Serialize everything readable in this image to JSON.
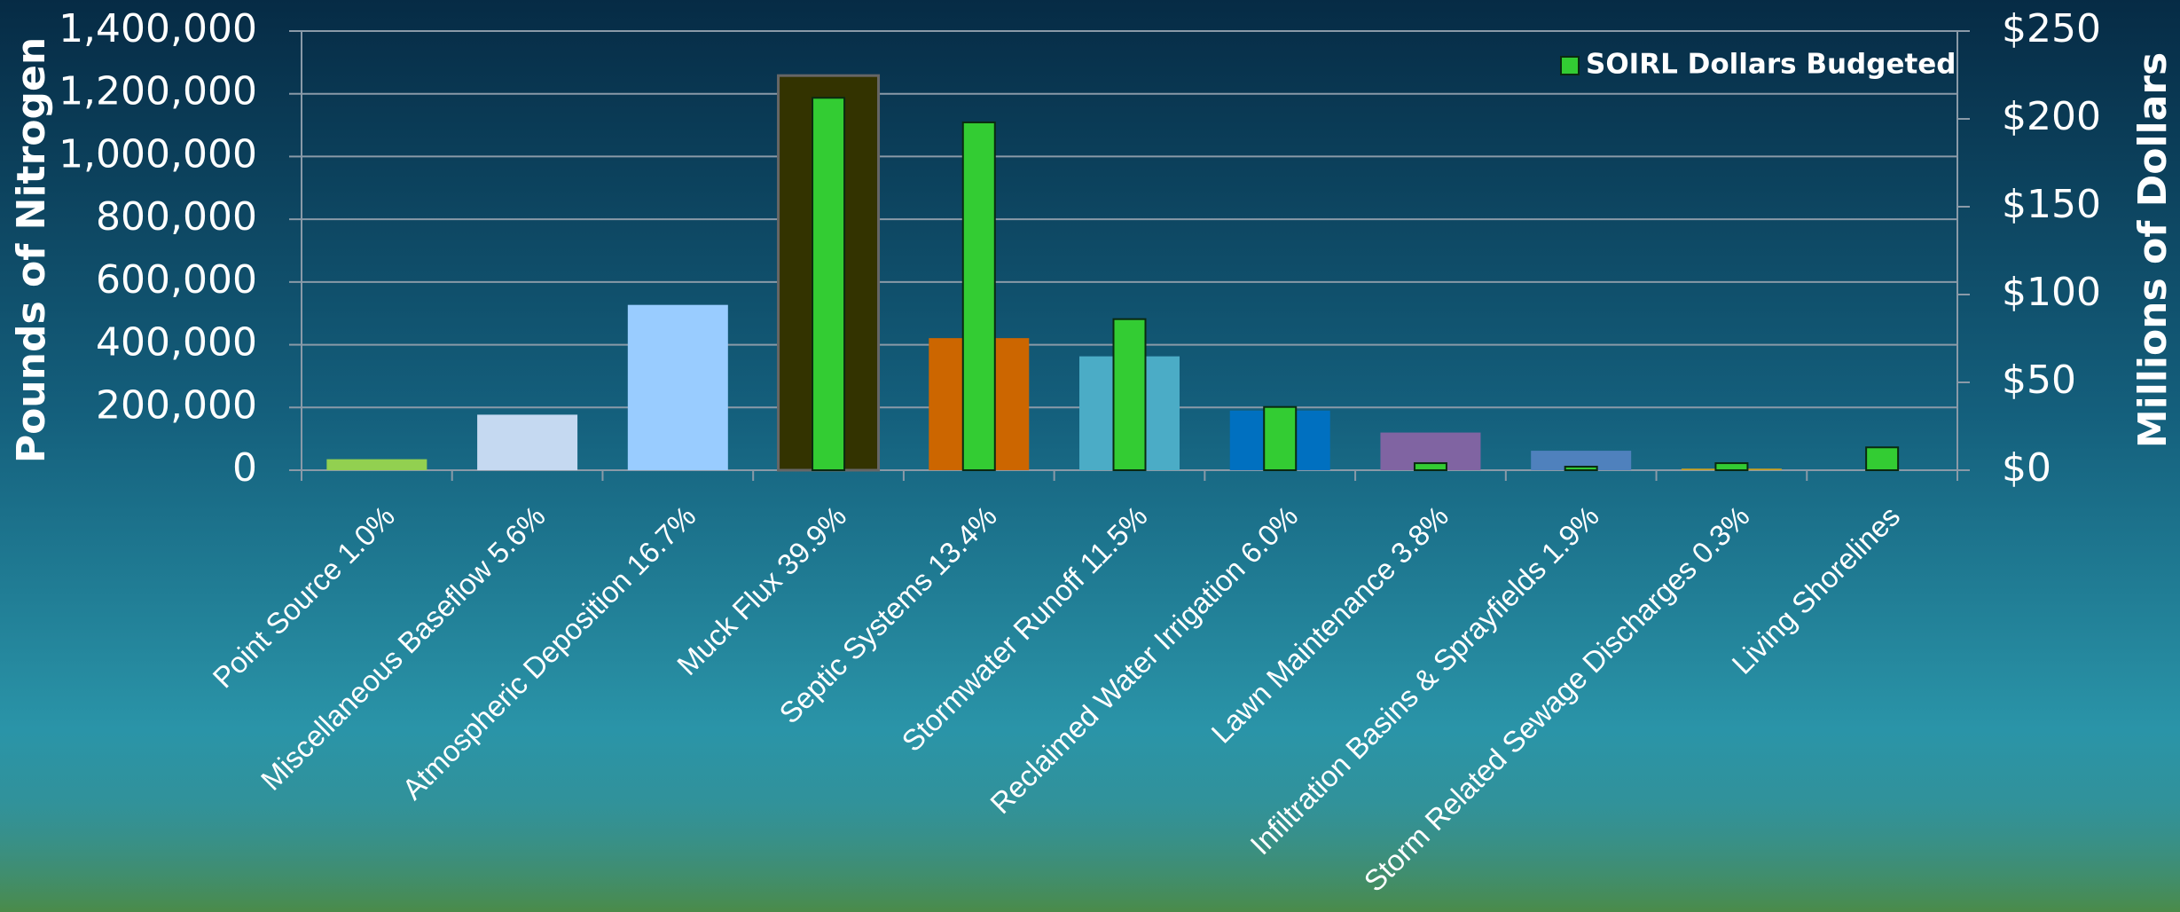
{
  "chart_data": {
    "type": "bar",
    "y_label": "Pounds of Nitrogen",
    "y2_label": "Millions of Dollars",
    "categories": [
      "Point Source 1.0%",
      "Miscellaneous Baseflow 5.6%",
      "Atmospheric Deposition 16.7%",
      "Muck Flux 39.9%",
      "Septic Systems 13.4%",
      "Stormwater Runoff 11.5%",
      "Reclaimed Water Irrigation 6.0%",
      "Lawn Maintenance 3.8%",
      "Infiltration Basins & Sprayfields 1.9%",
      "Storm Related Sewage Discharges 0.3%",
      "Living Shorelines"
    ],
    "series": [
      {
        "colors": [
          "#92d050",
          "#c5d9f1",
          "#99ccff",
          "#333300",
          "#cc6600",
          "#4bacc6",
          "#0070c0",
          "#8064a2",
          "#4f81bd",
          "#c9a227",
          "#4f81bd"
        ],
        "values": [
          35000,
          177000,
          527000,
          1258000,
          421000,
          363000,
          190000,
          120000,
          62000,
          5000,
          null
        ]
      },
      {
        "name": "SOIRL Dollars Budgeted",
        "color": "#33cc33",
        "axis": "y2",
        "values": [
          null,
          null,
          null,
          212,
          198,
          86,
          36,
          4,
          2,
          4,
          13
        ]
      }
    ],
    "ylim": [
      0,
      1400000
    ],
    "yticks": [
      0,
      {
        "value": 200000,
        "label": "200,000"
      },
      {
        "value": 400000,
        "label": "400,000"
      },
      {
        "value": 600000,
        "label": "600,000"
      },
      {
        "value": 800000,
        "label": "800,000"
      },
      {
        "value": 1000000,
        "label": "1,000,000"
      },
      {
        "value": 1200000,
        "label": "1,200,000"
      },
      {
        "value": 1400000,
        "label": "1,400,000"
      }
    ],
    "y2lim": [
      0,
      250
    ],
    "y2ticks": [
      {
        "value": 0,
        "label": "$0"
      },
      {
        "value": 50,
        "label": "$50"
      },
      {
        "value": 100,
        "label": "$100"
      },
      {
        "value": 150,
        "label": "$150"
      },
      {
        "value": 200,
        "label": "$200"
      },
      {
        "value": 250,
        "label": "$250"
      }
    ],
    "grid": true,
    "legend": "upper right"
  }
}
